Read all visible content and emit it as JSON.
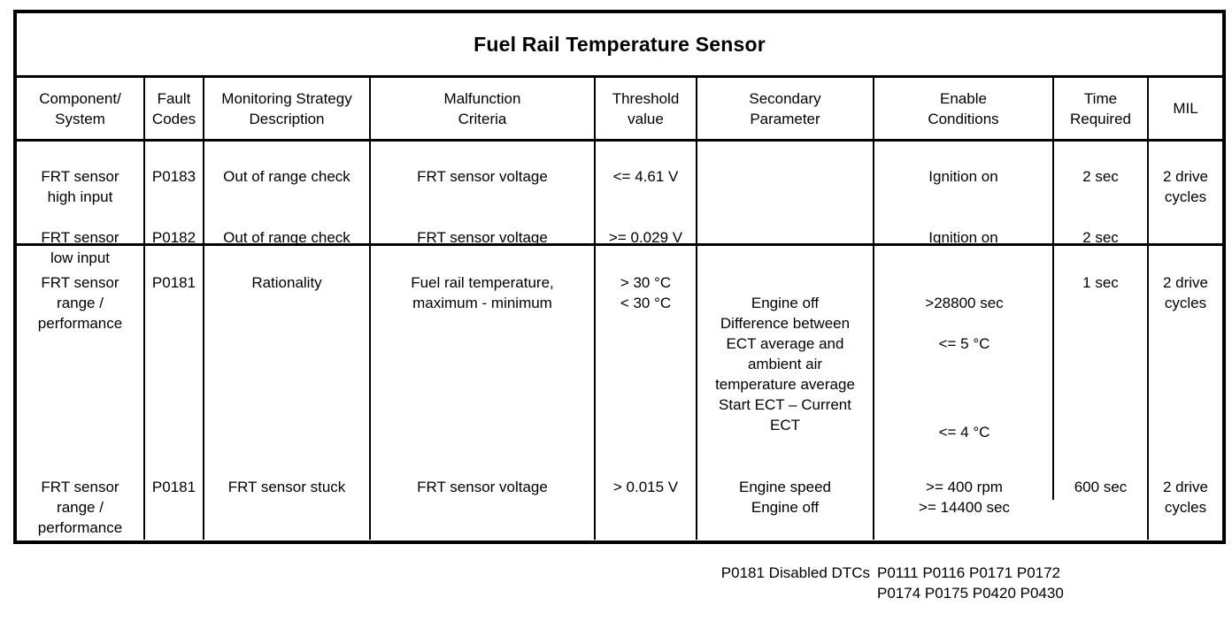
{
  "title": "Fuel Rail Temperature Sensor",
  "header": {
    "component": "Component/\nSystem",
    "fault_codes": "Fault\nCodes",
    "strategy": "Monitoring Strategy\nDescription",
    "criteria": "Malfunction\nCriteria",
    "threshold": "Threshold\nvalue",
    "secondary": "Secondary\nParameter",
    "enable": "Enable\nConditions",
    "time": "Time\nRequired",
    "mil": "MIL"
  },
  "out_of_range_rows": {
    "high": {
      "component": "FRT sensor\nhigh input",
      "code": "P0183",
      "strategy": "Out of range check",
      "criteria": "FRT sensor voltage",
      "threshold": "<= 4.61 V",
      "secondary": "",
      "enable": "Ignition on",
      "time": "2 sec"
    },
    "low": {
      "component": "FRT sensor\nlow input",
      "code": "P0182",
      "strategy": "Out of range check",
      "criteria": "FRT sensor voltage",
      "threshold": ">= 0.029 V",
      "secondary": "",
      "enable": "Ignition on",
      "time": "2 sec"
    },
    "mil": "2 drive\ncycles"
  },
  "rationality_row": {
    "component": "FRT sensor\nrange /\nperformance",
    "code": "P0181",
    "strategy": "Rationality",
    "criteria": "Fuel rail temperature,\nmaximum - minimum",
    "threshold": "> 30 °C\n< 30 °C",
    "secondary_1": "Engine off",
    "secondary_2": "Difference between\nECT average and\nambient air\ntemperature average",
    "secondary_3": "Start ECT – Current\nECT",
    "enable_1": ">28800 sec",
    "enable_2": "<= 5 °C",
    "enable_3": "<= 4 °C",
    "time": "1 sec",
    "mil": "2 drive\ncycles"
  },
  "stuck_row": {
    "component": "FRT sensor\nrange /\nperformance",
    "code": "P0181",
    "strategy": "FRT sensor stuck",
    "criteria": "FRT sensor voltage",
    "threshold": "> 0.015 V",
    "secondary": "Engine speed\nEngine off",
    "enable": ">= 400 rpm\n>= 14400 sec",
    "time": "600 sec",
    "mil": "2 drive\ncycles"
  },
  "disabled_dtcs": {
    "label": "P0181 Disabled DTCs",
    "codes": "P0111 P0116 P0171 P0172\nP0174 P0175 P0420 P0430"
  }
}
